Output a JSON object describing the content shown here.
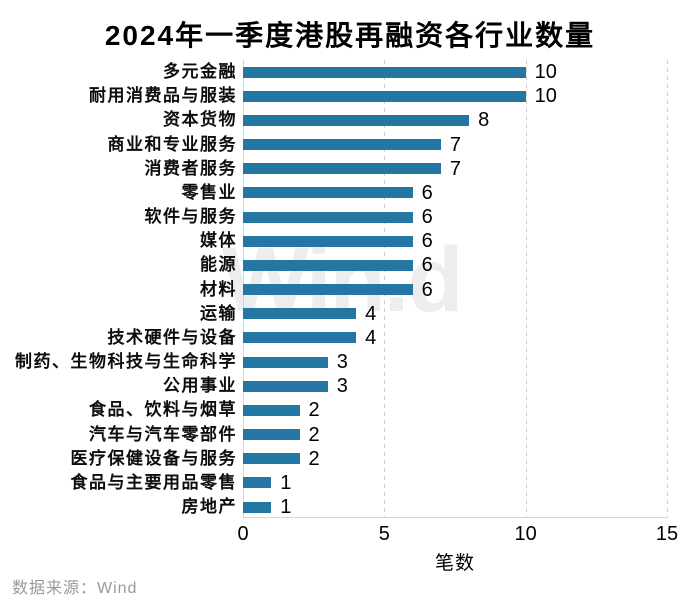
{
  "title": "2024年一季度港股再融资各行业数量",
  "watermark": "Win.d",
  "source": "数据来源：Wind",
  "chart_data": {
    "type": "bar",
    "orientation": "horizontal",
    "title": "2024年一季度港股再融资各行业数量",
    "categories": [
      "多元金融",
      "耐用消费品与服装",
      "资本货物",
      "商业和专业服务",
      "消费者服务",
      "零售业",
      "软件与服务",
      "媒体",
      "能源",
      "材料",
      "运输",
      "技术硬件与设备",
      "制药、生物科技与生命科学",
      "公用事业",
      "食品、饮料与烟草",
      "汽车与汽车零部件",
      "医疗保健设备与服务",
      "食品与主要用品零售",
      "房地产"
    ],
    "values": [
      10,
      10,
      8,
      7,
      7,
      6,
      6,
      6,
      6,
      6,
      4,
      4,
      3,
      3,
      2,
      2,
      2,
      1,
      1
    ],
    "xlabel": "笔数",
    "ylabel": "",
    "xlim": [
      0,
      15
    ],
    "xticks": [
      0,
      5,
      10,
      15
    ],
    "grid": "vertical-dashed",
    "legend": "none",
    "value_labels": "shown-at-bar-end"
  },
  "colors": {
    "bar": "#2577A3",
    "grid": "#CFCFCF",
    "axis": "#D4D4D4",
    "watermark": "#EDEDED",
    "text": "#000000",
    "source_text": "#999999",
    "background": "#FFFFFF"
  }
}
